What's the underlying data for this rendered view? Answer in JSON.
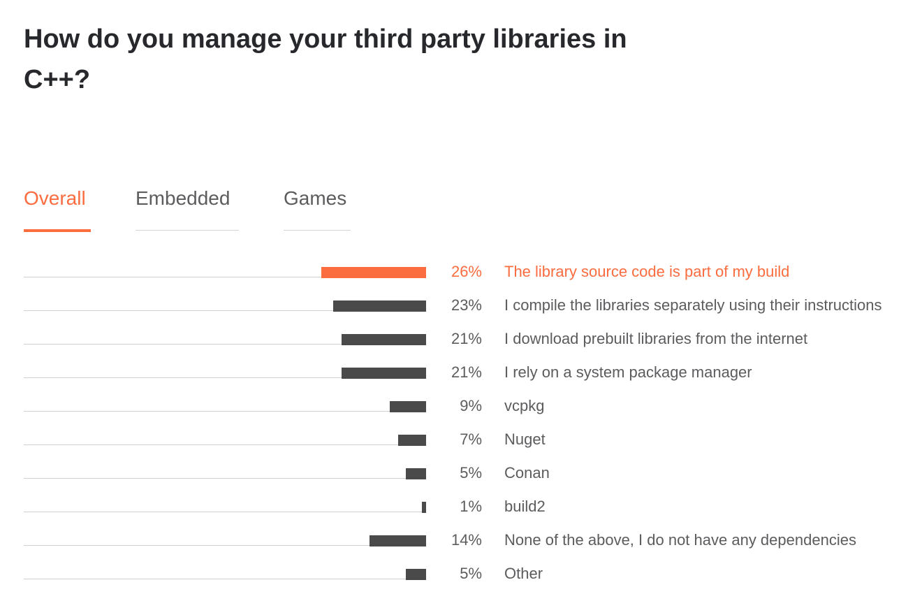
{
  "page": {
    "title": "How do you manage your third party libraries in C++?"
  },
  "tabs": [
    {
      "label": "Overall",
      "active": true
    },
    {
      "label": "Embedded",
      "active": false
    },
    {
      "label": "Games",
      "active": false
    }
  ],
  "colors": {
    "accent": "#fb6c3f",
    "bar": "#4a4a4a",
    "text": "#5c5c5f",
    "title": "#27282c"
  },
  "chart_data": {
    "type": "bar",
    "orientation": "horizontal",
    "xlim": [
      0,
      26
    ],
    "grid": false,
    "highlight_index": 0,
    "categories": [
      "The library source code is part of my build",
      "I compile the libraries separately using their instructions",
      "I download prebuilt libraries from the internet",
      "I rely on a system package manager",
      "vcpkg",
      "Nuget",
      "Conan",
      "build2",
      "None of the above, I do not have any dependencies",
      "Other"
    ],
    "values": [
      26,
      23,
      21,
      21,
      9,
      7,
      5,
      1,
      14,
      5
    ],
    "value_labels": [
      "26%",
      "23%",
      "21%",
      "21%",
      "9%",
      "7%",
      "5%",
      "1%",
      "14%",
      "5%"
    ]
  }
}
